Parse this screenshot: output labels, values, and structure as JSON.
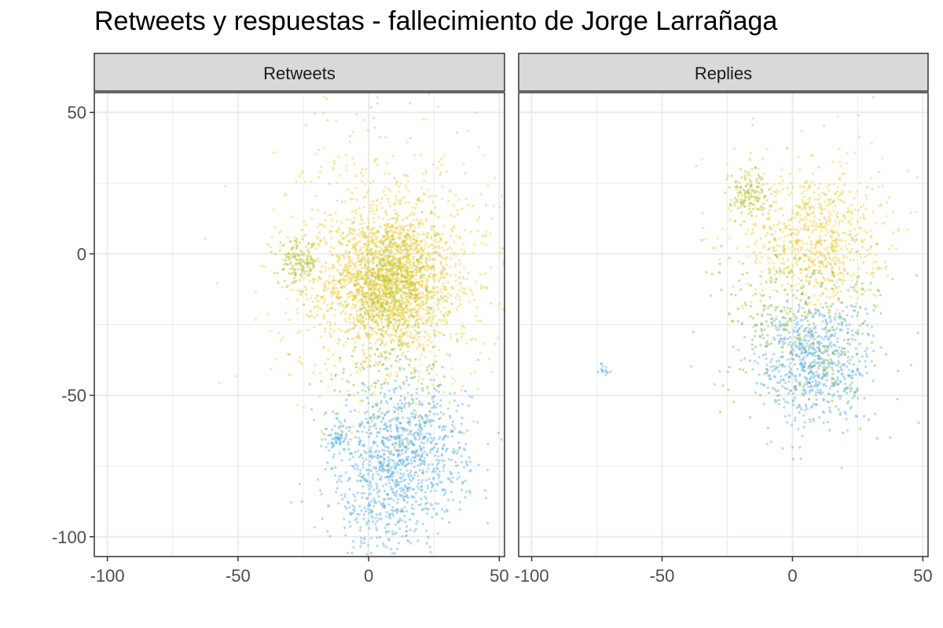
{
  "title": "Retweets y respuestas - fallecimiento de Jorge Larrañaga",
  "colors": {
    "blue": "#5aaee0",
    "yellow": "#f0cf3c",
    "green": "#88b83a",
    "olive": "#b8c43a",
    "grey": "#bdbdbd",
    "grid": "#ebebeb",
    "strip": "#d9d9d9",
    "border": "#333333"
  },
  "chart_data": {
    "type": "scatter",
    "xlim": [
      -105,
      52
    ],
    "ylim": [
      -107,
      57
    ],
    "x_ticks": [
      -100,
      -50,
      0,
      50
    ],
    "y_ticks": [
      50,
      0,
      -50,
      -100
    ],
    "x_tick_labels": [
      "-100",
      "-50",
      "0",
      "50"
    ],
    "y_tick_labels": [
      "50",
      "0",
      "-50",
      "-100"
    ],
    "grid": true,
    "panels": [
      {
        "label": "Retweets",
        "clusters": [
          {
            "group": "yellow",
            "cx": 8,
            "cy": -10,
            "r": 22,
            "n": 1500
          },
          {
            "group": "yellow",
            "cx": 8,
            "cy": -5,
            "r": 40,
            "n": 900
          },
          {
            "group": "olive",
            "cx": 8,
            "cy": -10,
            "r": 16,
            "n": 500
          },
          {
            "group": "olive",
            "cx": -27,
            "cy": -3,
            "r": 7,
            "n": 150
          },
          {
            "group": "blue",
            "cx": 14,
            "cy": -70,
            "r": 22,
            "n": 900
          },
          {
            "group": "blue",
            "cx": 5,
            "cy": -90,
            "r": 18,
            "n": 250
          },
          {
            "group": "blue",
            "cx": -12,
            "cy": -65,
            "r": 4,
            "n": 60
          },
          {
            "group": "green",
            "cx": 10,
            "cy": -40,
            "r": 25,
            "n": 160
          },
          {
            "group": "grey",
            "cx": 10,
            "cy": 40,
            "r": 40,
            "n": 60
          }
        ]
      },
      {
        "label": "Replies",
        "clusters": [
          {
            "group": "yellow",
            "cx": 8,
            "cy": 5,
            "r": 24,
            "n": 800
          },
          {
            "group": "olive",
            "cx": -17,
            "cy": 22,
            "r": 7,
            "n": 140
          },
          {
            "group": "blue",
            "cx": 8,
            "cy": -38,
            "r": 20,
            "n": 700
          },
          {
            "group": "green",
            "cx": 5,
            "cy": -25,
            "r": 30,
            "n": 350
          },
          {
            "group": "blue",
            "cx": -72,
            "cy": -41,
            "r": 2,
            "n": 15
          },
          {
            "group": "grey",
            "cx": 5,
            "cy": 30,
            "r": 45,
            "n": 30
          }
        ]
      }
    ]
  }
}
